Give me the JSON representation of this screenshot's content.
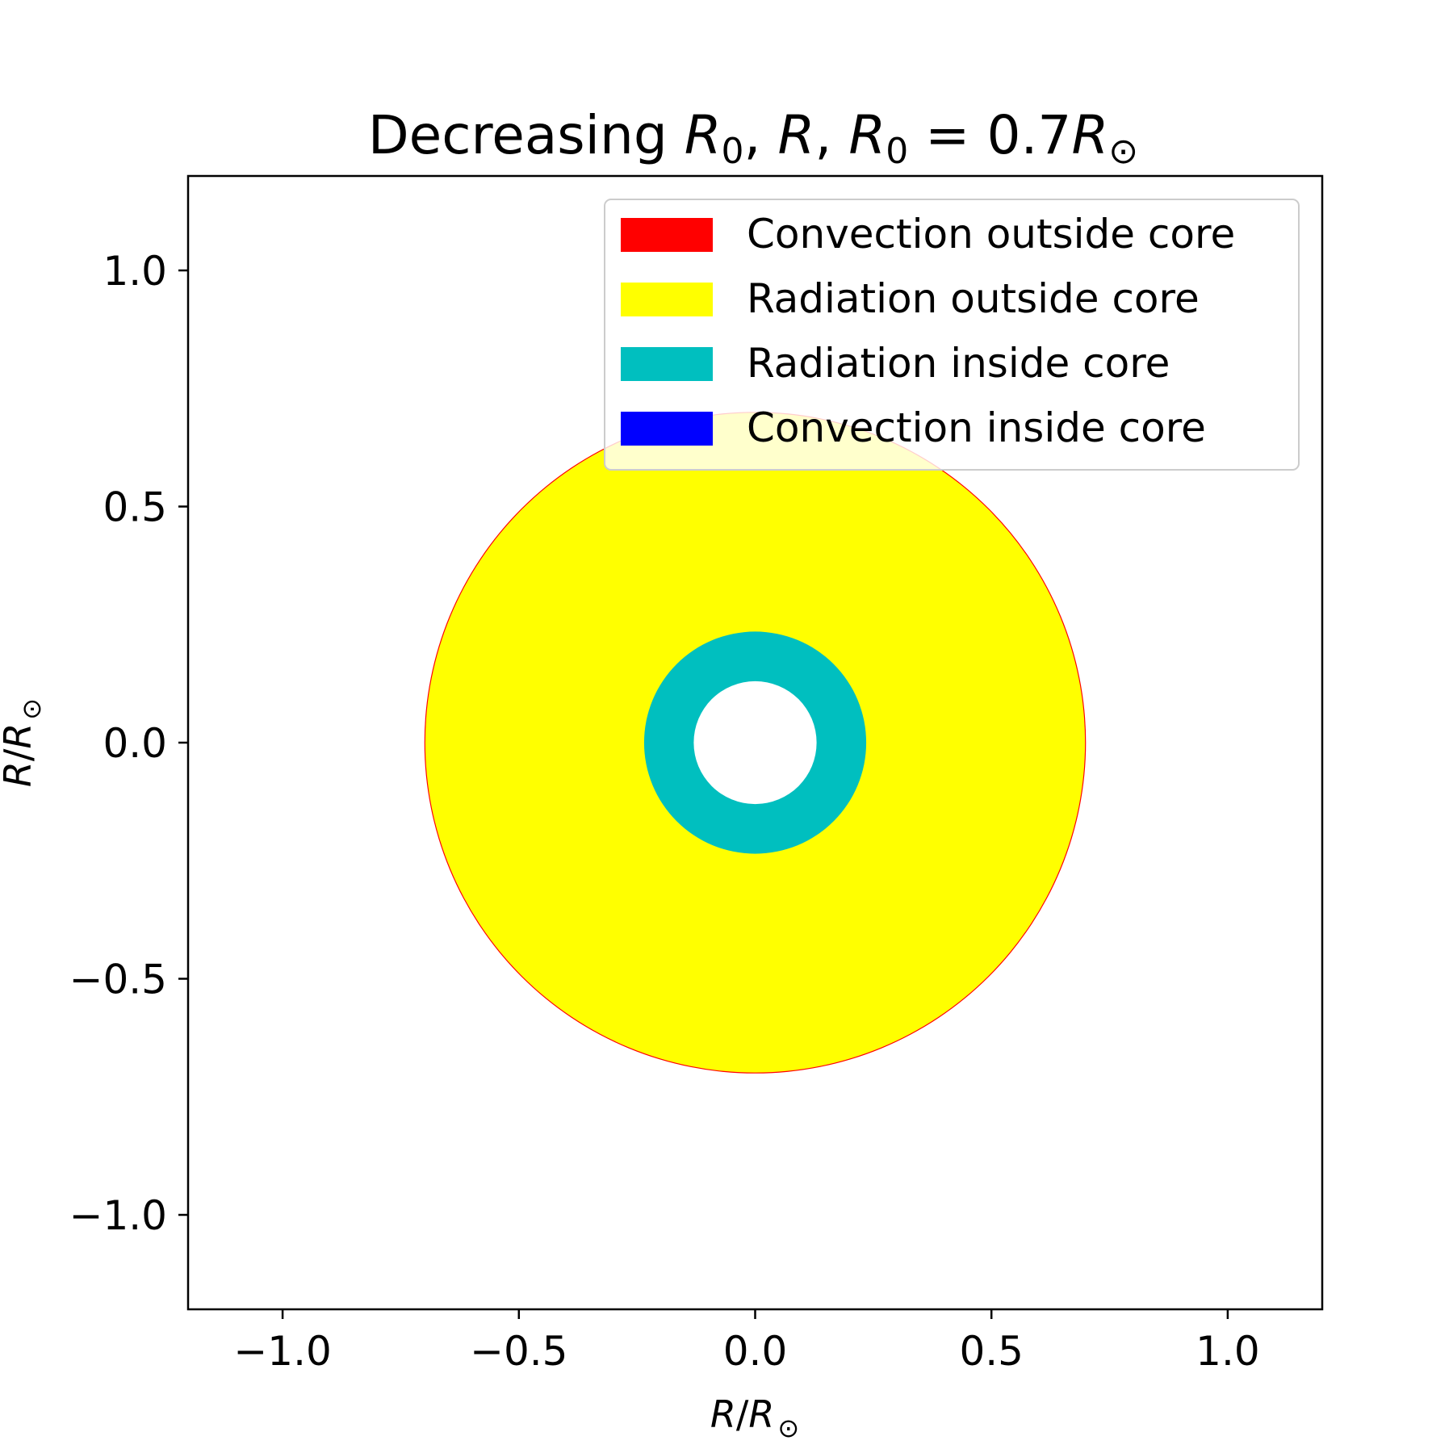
{
  "chart_data": {
    "type": "area",
    "title": {
      "prefix": "Decreasing ",
      "r0": "R",
      "r0_sub": "0",
      "sep1": ", ",
      "r": "R",
      "sep2": ", ",
      "r0b": "R",
      "r0b_sub": "0",
      "eq": " = 0.7",
      "rsun": "R",
      "rsun_sub": "⊙"
    },
    "xlabel": {
      "r": "R",
      "slash": "/",
      "rsun": "R",
      "sub": "⊙"
    },
    "ylabel": {
      "r": "R",
      "slash": "/",
      "rsun": "R",
      "sub": "⊙"
    },
    "xlim": [
      -1.2,
      1.2
    ],
    "ylim": [
      -1.2,
      1.2
    ],
    "xticks": [
      -1.0,
      -0.5,
      0.0,
      0.5,
      1.0
    ],
    "yticks": [
      -1.0,
      -0.5,
      0.0,
      0.5,
      1.0
    ],
    "xtick_labels": [
      "−1.0",
      "−0.5",
      "0.0",
      "0.5",
      "1.0"
    ],
    "ytick_labels": [
      "−1.0",
      "−0.5",
      "0.0",
      "0.5",
      "1.0"
    ],
    "grid": false,
    "legend_placement": "upper right",
    "legend": [
      {
        "label": "Convection outside core",
        "color": "#ff0000"
      },
      {
        "label": "Radiation outside core",
        "color": "#ffff00"
      },
      {
        "label": "Radiation inside core",
        "color": "#00bfbf"
      },
      {
        "label": "Convection inside core",
        "color": "#0000ff"
      }
    ],
    "rings": [
      {
        "name": "convection-outside-core-edge",
        "outer_radius": 0.7,
        "inner_radius": 0.698,
        "color": "#ff0000"
      },
      {
        "name": "radiation-outside-core",
        "outer_radius": 0.698,
        "inner_radius": 0.235,
        "color": "#ffff00"
      },
      {
        "name": "radiation-inside-core",
        "outer_radius": 0.235,
        "inner_radius": 0.13,
        "color": "#00bfbf"
      },
      {
        "name": "center-hole",
        "outer_radius": 0.13,
        "inner_radius": 0.0,
        "color": "#ffffff"
      }
    ]
  }
}
